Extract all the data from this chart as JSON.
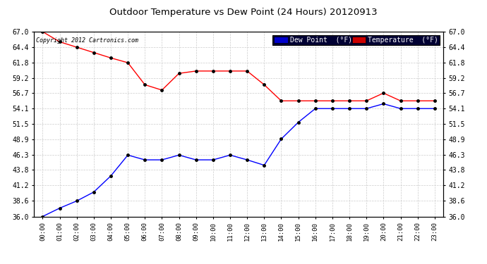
{
  "title": "Outdoor Temperature vs Dew Point (24 Hours) 20120913",
  "copyright_text": "Copyright 2012 Cartronics.com",
  "background_color": "#ffffff",
  "plot_background": "#ffffff",
  "grid_color": "#cccccc",
  "ylim": [
    36.0,
    67.0
  ],
  "yticks": [
    36.0,
    38.6,
    41.2,
    43.8,
    46.3,
    48.9,
    51.5,
    54.1,
    56.7,
    59.2,
    61.8,
    64.4,
    67.0
  ],
  "x_labels": [
    "00:00",
    "01:00",
    "02:00",
    "03:00",
    "04:00",
    "05:00",
    "06:00",
    "07:00",
    "08:00",
    "09:00",
    "10:00",
    "11:00",
    "12:00",
    "13:00",
    "14:00",
    "15:00",
    "16:00",
    "17:00",
    "18:00",
    "19:00",
    "20:00",
    "21:00",
    "22:00",
    "23:00"
  ],
  "temperature_color": "#ff0000",
  "dewpoint_color": "#0000ff",
  "marker_color": "#000000",
  "temperature_data": [
    67.0,
    65.3,
    64.4,
    63.5,
    62.6,
    61.8,
    58.1,
    57.2,
    60.0,
    60.4,
    60.4,
    60.4,
    60.4,
    58.1,
    55.4,
    55.4,
    55.4,
    55.4,
    55.4,
    55.4,
    56.7,
    55.4,
    55.4,
    55.4
  ],
  "dewpoint_data": [
    36.0,
    37.4,
    38.6,
    40.1,
    42.8,
    46.3,
    45.5,
    45.5,
    46.3,
    45.5,
    45.5,
    46.3,
    45.5,
    44.6,
    49.0,
    51.8,
    54.1,
    54.1,
    54.1,
    54.1,
    54.9,
    54.1,
    54.1,
    54.1
  ]
}
